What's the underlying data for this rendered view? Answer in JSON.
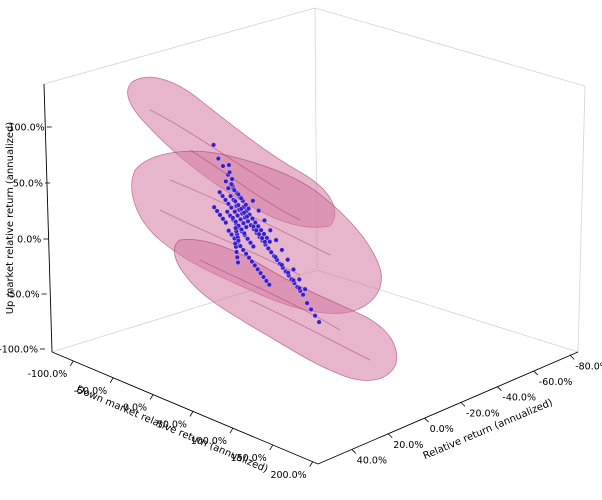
{
  "chart_data": {
    "type": "scatter",
    "projection": "3d",
    "axes": {
      "x": {
        "label": "Down market relative return (annualized)",
        "ticks": [
          "-100.0%",
          "-50.0%",
          "0.0%",
          "50.0%",
          "100.0%",
          "150.0%",
          "200.0%"
        ]
      },
      "y": {
        "label": "Relative return (annualized)",
        "ticks": [
          "-80.0%",
          "-60.0%",
          "-40.0%",
          "-20.0%",
          "0.0%",
          "20.0%",
          "40.0%"
        ]
      },
      "z": {
        "label": "Up market relative return (annualized)",
        "ticks": [
          "-100.0%",
          "-50.0%",
          "0.0%",
          "50.0%",
          "100.0%"
        ]
      }
    },
    "colors": {
      "points": "#3a1fc4",
      "point_edge": "#c9b8ff",
      "surface_fill": "#d47aa2",
      "surface_edge": "#a3245c",
      "pane_edge": "#d4d4d4",
      "axis_line": "#000000"
    },
    "grid": false,
    "legend": "none",
    "series": [
      {
        "values_note_free": true,
        "points": [
          [
            -12,
            22,
            92
          ],
          [
            -8,
            14,
            70
          ],
          [
            -5,
            10,
            48
          ],
          [
            -2,
            6,
            36
          ],
          [
            0,
            4,
            30
          ],
          [
            2,
            2,
            26
          ],
          [
            4,
            0,
            22
          ],
          [
            -4,
            8,
            40
          ],
          [
            -6,
            12,
            55
          ],
          [
            -10,
            18,
            78
          ],
          [
            6,
            -2,
            18
          ],
          [
            8,
            -4,
            14
          ],
          [
            10,
            -6,
            10
          ],
          [
            12,
            -8,
            6
          ],
          [
            14,
            -10,
            2
          ],
          [
            16,
            -12,
            -2
          ],
          [
            18,
            -14,
            -6
          ],
          [
            20,
            -16,
            -10
          ],
          [
            22,
            -18,
            -14
          ],
          [
            24,
            -20,
            -18
          ],
          [
            26,
            -22,
            -22
          ],
          [
            28,
            -24,
            -26
          ],
          [
            30,
            -26,
            -30
          ],
          [
            32,
            -28,
            -34
          ],
          [
            34,
            -30,
            -38
          ],
          [
            36,
            -32,
            -42
          ],
          [
            38,
            -34,
            -46
          ],
          [
            40,
            -36,
            -50
          ],
          [
            42,
            -38,
            -54
          ],
          [
            44,
            -40,
            -58
          ],
          [
            46,
            -42,
            -62
          ],
          [
            50,
            -44,
            -70
          ],
          [
            54,
            -46,
            -76
          ],
          [
            58,
            -48,
            -82
          ],
          [
            62,
            -50,
            -88
          ],
          [
            -3,
            4,
            24
          ],
          [
            -1,
            2,
            20
          ],
          [
            1,
            0,
            16
          ],
          [
            3,
            -2,
            12
          ],
          [
            5,
            -4,
            8
          ],
          [
            -6,
            6,
            28
          ],
          [
            -8,
            8,
            32
          ],
          [
            -10,
            10,
            36
          ],
          [
            -12,
            12,
            40
          ],
          [
            -14,
            14,
            44
          ],
          [
            0,
            -2,
            4
          ],
          [
            2,
            -4,
            0
          ],
          [
            4,
            -6,
            -4
          ],
          [
            6,
            -8,
            -8
          ],
          [
            8,
            -10,
            -12
          ],
          [
            -2,
            0,
            8
          ],
          [
            -4,
            2,
            12
          ],
          [
            -6,
            4,
            16
          ],
          [
            -8,
            6,
            20
          ],
          [
            -10,
            8,
            24
          ],
          [
            10,
            2,
            30
          ],
          [
            12,
            0,
            26
          ],
          [
            14,
            -2,
            22
          ],
          [
            16,
            -4,
            18
          ],
          [
            18,
            -6,
            14
          ],
          [
            20,
            -8,
            10
          ],
          [
            22,
            -10,
            6
          ],
          [
            24,
            -12,
            2
          ],
          [
            26,
            -14,
            -2
          ],
          [
            28,
            -16,
            -6
          ],
          [
            -14,
            4,
            4
          ],
          [
            -12,
            2,
            0
          ],
          [
            -10,
            0,
            -4
          ],
          [
            -8,
            -2,
            -8
          ],
          [
            -6,
            -4,
            -12
          ],
          [
            -4,
            -6,
            -16
          ],
          [
            -2,
            -8,
            -20
          ],
          [
            0,
            -10,
            -24
          ],
          [
            2,
            -12,
            -28
          ],
          [
            4,
            -14,
            -32
          ],
          [
            6,
            -16,
            -36
          ],
          [
            8,
            -18,
            -40
          ],
          [
            10,
            -20,
            -44
          ],
          [
            12,
            -22,
            -48
          ],
          [
            14,
            -24,
            -52
          ],
          [
            30,
            4,
            40
          ],
          [
            34,
            0,
            30
          ],
          [
            38,
            -4,
            20
          ],
          [
            42,
            -8,
            10
          ],
          [
            46,
            -12,
            0
          ],
          [
            50,
            -16,
            -10
          ],
          [
            54,
            -20,
            -20
          ],
          [
            58,
            -24,
            -30
          ],
          [
            62,
            -28,
            -40
          ],
          [
            66,
            -32,
            -50
          ],
          [
            -20,
            10,
            20
          ],
          [
            -18,
            8,
            16
          ],
          [
            -16,
            6,
            12
          ],
          [
            -22,
            12,
            24
          ],
          [
            -24,
            14,
            28
          ],
          [
            -1,
            1,
            10
          ],
          [
            1,
            -1,
            6
          ],
          [
            3,
            -3,
            2
          ],
          [
            -3,
            3,
            14
          ],
          [
            -5,
            5,
            18
          ],
          [
            7,
            3,
            28
          ],
          [
            9,
            1,
            24
          ],
          [
            11,
            -1,
            20
          ],
          [
            5,
            5,
            32
          ],
          [
            3,
            7,
            36
          ],
          [
            -7,
            -1,
            0
          ],
          [
            -9,
            -3,
            -4
          ],
          [
            -11,
            -5,
            -8
          ],
          [
            -5,
            1,
            4
          ],
          [
            -3,
            3,
            8
          ],
          [
            15,
            6,
            38
          ],
          [
            17,
            4,
            34
          ],
          [
            19,
            2,
            30
          ],
          [
            13,
            8,
            42
          ],
          [
            11,
            10,
            46
          ],
          [
            25,
            -6,
            4
          ],
          [
            27,
            -8,
            0
          ],
          [
            29,
            -10,
            -4
          ],
          [
            23,
            -4,
            8
          ],
          [
            21,
            -2,
            12
          ],
          [
            0,
            8,
            50
          ],
          [
            2,
            10,
            58
          ],
          [
            -2,
            12,
            62
          ],
          [
            4,
            14,
            66
          ],
          [
            6,
            16,
            74
          ],
          [
            35,
            -18,
            -20
          ],
          [
            40,
            -22,
            -28
          ],
          [
            45,
            -26,
            -36
          ],
          [
            48,
            -30,
            -44
          ],
          [
            52,
            -34,
            -52
          ],
          [
            -16,
            -6,
            -20
          ],
          [
            -18,
            -8,
            -26
          ],
          [
            -20,
            -10,
            -32
          ],
          [
            -14,
            -4,
            -14
          ],
          [
            -12,
            -2,
            -10
          ],
          [
            8,
            12,
            50
          ],
          [
            10,
            8,
            44
          ],
          [
            12,
            6,
            40
          ],
          [
            6,
            10,
            48
          ],
          [
            4,
            12,
            54
          ]
        ]
      }
    ]
  }
}
